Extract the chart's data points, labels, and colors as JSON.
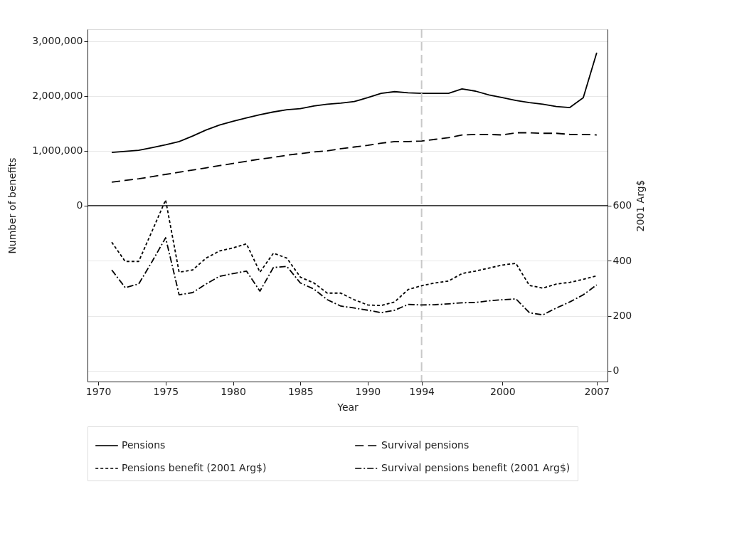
{
  "chart_data": {
    "type": "line",
    "xlabel": "Year",
    "ylabel": "Number of benefits",
    "y2label": "2001 Arg$",
    "x": [
      1971,
      1972,
      1973,
      1974,
      1975,
      1976,
      1977,
      1978,
      1979,
      1980,
      1981,
      1982,
      1983,
      1984,
      1985,
      1986,
      1987,
      1988,
      1989,
      1990,
      1991,
      1992,
      1993,
      1994,
      1995,
      1996,
      1997,
      1998,
      1999,
      2000,
      2001,
      2002,
      2003,
      2004,
      2005,
      2006,
      2007
    ],
    "series": [
      {
        "name": "Pensions",
        "color": "#000000",
        "line_style": "solid",
        "values": [
          970000,
          990000,
          1010000,
          1060000,
          1110000,
          1170000,
          1270000,
          1380000,
          1470000,
          1540000,
          1600000,
          1660000,
          1710000,
          1750000,
          1770000,
          1820000,
          1850000,
          1870000,
          1900000,
          1970000,
          2050000,
          2080000,
          2060000,
          2050000,
          2050000,
          2050000,
          2130000,
          2090000,
          2020000,
          1970000,
          1920000,
          1880000,
          1850000,
          1810000,
          1790000,
          1970000,
          2790000
        ]
      },
      {
        "name": "Survival pensions",
        "color": "#000000",
        "line_style": "dashed",
        "values": [
          430000,
          460000,
          490000,
          530000,
          570000,
          610000,
          650000,
          690000,
          730000,
          770000,
          810000,
          850000,
          880000,
          920000,
          950000,
          980000,
          1000000,
          1040000,
          1070000,
          1100000,
          1140000,
          1170000,
          1170000,
          1180000,
          1210000,
          1240000,
          1290000,
          1300000,
          1300000,
          1290000,
          1330000,
          1330000,
          1320000,
          1320000,
          1300000,
          1300000,
          1290000
        ]
      },
      {
        "name": "Pensions benefit (2001 Arg$)",
        "color": "#000000",
        "line_style": "dotted",
        "axis": "y2",
        "values": [
          467,
          397,
          397,
          508,
          620,
          358,
          366,
          409,
          435,
          446,
          461,
          358,
          427,
          409,
          340,
          319,
          282,
          282,
          258,
          239,
          237,
          250,
          295,
          309,
          319,
          326,
          353,
          362,
          373,
          384,
          390,
          310,
          300,
          315,
          321,
          332,
          345
        ]
      },
      {
        "name": "Survival pensions benefit (2001 Arg$)",
        "color": "#000000",
        "line_style": "dashdot",
        "axis": "y2",
        "values": [
          366,
          302,
          315,
          397,
          483,
          276,
          284,
          315,
          343,
          353,
          362,
          289,
          375,
          379,
          319,
          297,
          258,
          235,
          228,
          220,
          211,
          220,
          241,
          239,
          240,
          243,
          247,
          248,
          254,
          258,
          261,
          211,
          203,
          228,
          250,
          276,
          312
        ]
      }
    ],
    "xlim": [
      1969.2,
      2007.8
    ],
    "xticks": [
      1970,
      1975,
      1980,
      1985,
      1990,
      1994,
      2000,
      2007
    ],
    "ylim": [
      -3210000,
      3220000
    ],
    "yticks": [
      0,
      {
        "value": 1000000,
        "label": "1,000,000"
      },
      {
        "value": 2000000,
        "label": "2,000,000"
      },
      {
        "value": 3000000,
        "label": "3,000,000"
      }
    ],
    "y2lim": [
      -39,
      1240
    ],
    "y2ticks": [
      0,
      200,
      400,
      600
    ],
    "ref_lines": [
      {
        "axis": "x",
        "value": 1994,
        "color": "#c8c8c8",
        "line_style": "dashed"
      },
      {
        "axis": "y",
        "value": 0,
        "color": "#000000",
        "line_style": "solid"
      }
    ],
    "grid": "y",
    "legend": "bottom"
  }
}
